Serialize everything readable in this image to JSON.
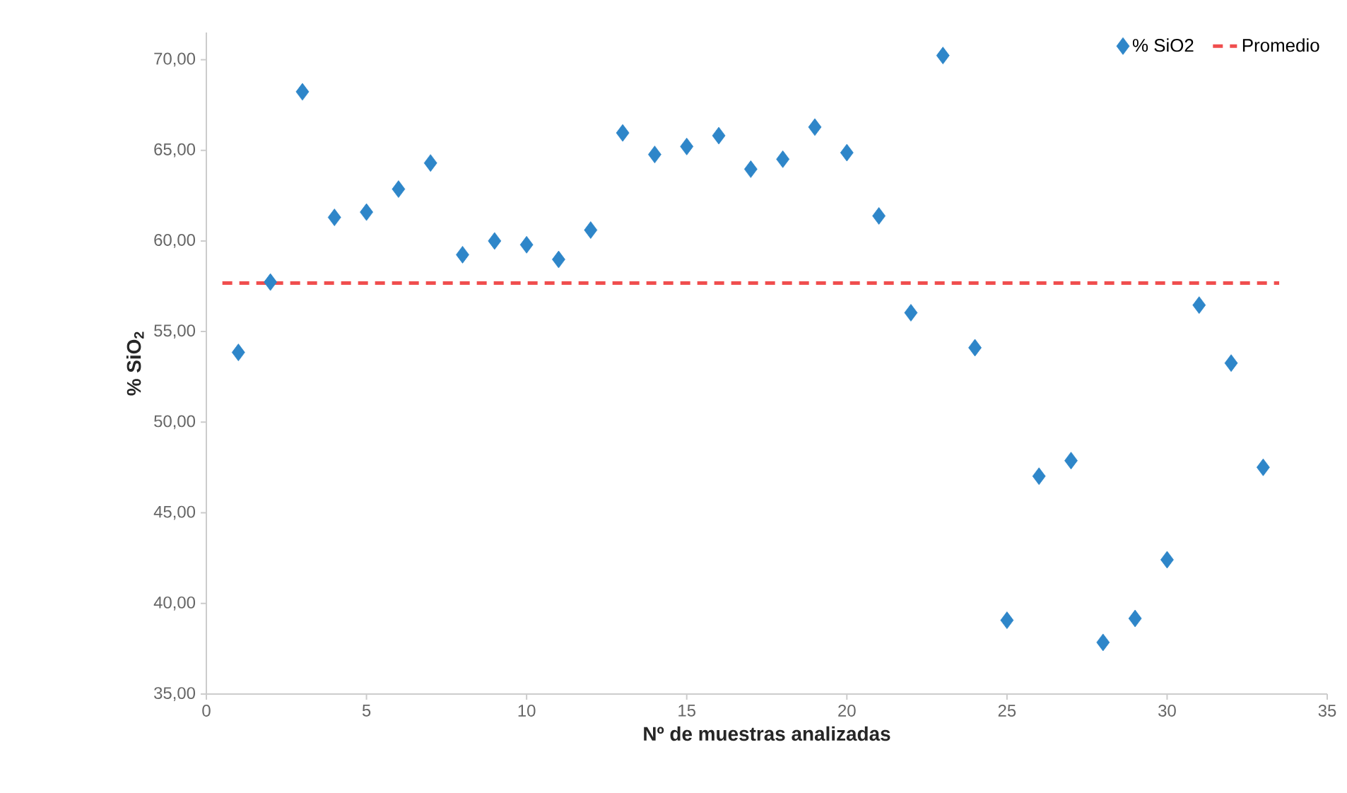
{
  "chart_data": {
    "type": "scatter",
    "xlabel": "**Nº de muestras analizadas**",
    "ylabel": "**% SiO$_{2}$**",
    "x": [
      1,
      2,
      3,
      4,
      5,
      6,
      7,
      8,
      9,
      10,
      11,
      12,
      13,
      14,
      15,
      16,
      17,
      18,
      19,
      20,
      21,
      22,
      23,
      24,
      25,
      26,
      27,
      28,
      29,
      30,
      31,
      32,
      33
    ],
    "series": [
      {
        "name": "% SiO2",
        "color": "#2e86c9",
        "values": [
          53.85,
          57.73,
          68.23,
          61.3,
          61.59,
          62.86,
          64.3,
          59.24,
          60.0,
          59.79,
          58.98,
          60.6,
          65.96,
          64.77,
          65.21,
          65.81,
          63.96,
          64.51,
          66.28,
          64.87,
          61.38,
          56.04,
          70.23,
          54.11,
          39.07,
          47.02,
          47.88,
          37.85,
          39.17,
          42.41,
          56.46,
          53.26,
          47.51
        ]
      }
    ],
    "ref_lines": [
      {
        "axis": "y",
        "value": 57.68,
        "label": "Promedio",
        "color": "#f04e4e",
        "line_style": "dashed"
      }
    ],
    "marker": "diamond",
    "legend": "top right",
    "grid": false,
    "xlim": [
      0,
      35
    ],
    "xticks": [
      0,
      5,
      10,
      15,
      20,
      25,
      30,
      35
    ],
    "ylim": [
      35,
      71.5
    ],
    "yticks": [
      {
        "value": 35,
        "label": "35,00"
      },
      {
        "value": 40,
        "label": "40,00"
      },
      {
        "value": 45,
        "label": "45,00"
      },
      {
        "value": 50,
        "label": "50,00"
      },
      {
        "value": 55,
        "label": "55,00"
      },
      {
        "value": 60,
        "label": "60,00"
      },
      {
        "value": 65,
        "label": "65,00"
      },
      {
        "value": 70,
        "label": "70,00"
      }
    ]
  }
}
